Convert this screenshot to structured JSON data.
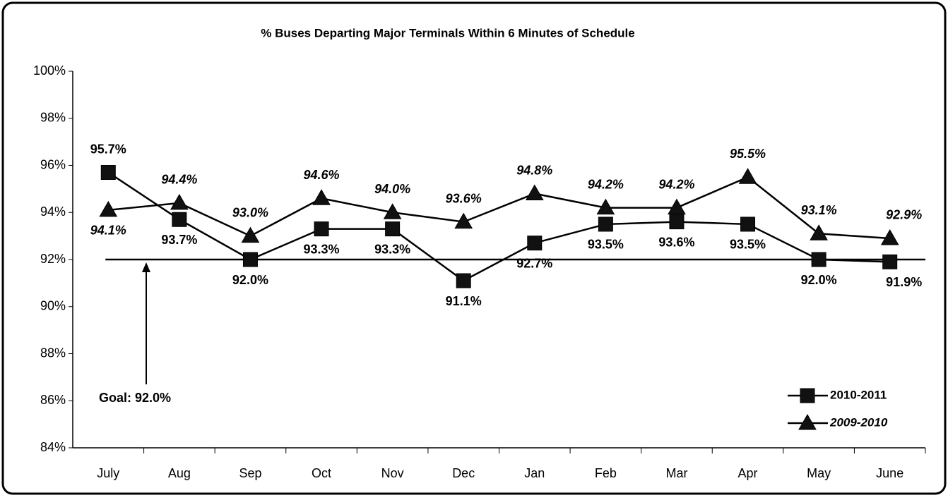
{
  "chart_data": {
    "type": "line",
    "title": "% Buses Departing Major Terminals Within 6 Minutes of Schedule",
    "categories": [
      "July",
      "Aug",
      "Sep",
      "Oct",
      "Nov",
      "Dec",
      "Jan",
      "Feb",
      "Mar",
      "Apr",
      "May",
      "June"
    ],
    "series": [
      {
        "name": "2010-2011",
        "color": "#000000",
        "marker": "square",
        "values": [
          95.7,
          93.7,
          92.0,
          93.3,
          93.3,
          91.1,
          92.7,
          93.5,
          93.6,
          93.5,
          92.0,
          91.9
        ],
        "value_labels": [
          "95.7%",
          "93.7%",
          "92.0%",
          "93.3%",
          "93.3%",
          "91.1%",
          "92.7%",
          "93.5%",
          "93.6%",
          "93.5%",
          "92.0%",
          "91.9%"
        ]
      },
      {
        "name": "2009-2010",
        "color": "#000000",
        "marker": "triangle",
        "values": [
          94.1,
          94.4,
          93.0,
          94.6,
          94.0,
          93.6,
          94.8,
          94.2,
          94.2,
          95.5,
          93.1,
          92.9
        ],
        "value_labels": [
          "94.1%",
          "94.4%",
          "93.0%",
          "94.6%",
          "94.0%",
          "93.6%",
          "94.8%",
          "94.2%",
          "94.2%",
          "95.5%",
          "93.1%",
          "92.9%"
        ]
      }
    ],
    "goal": {
      "value": 92,
      "label": "Goal: 92.0%"
    },
    "ylim": [
      84,
      100
    ],
    "yticks": [
      {
        "value": 84,
        "label": "84%"
      },
      {
        "value": 86,
        "label": "86%"
      },
      {
        "value": 88,
        "label": "88%"
      },
      {
        "value": 90,
        "label": "90%"
      },
      {
        "value": 92,
        "label": "92%"
      },
      {
        "value": 94,
        "label": "94%"
      },
      {
        "value": 96,
        "label": "96%"
      },
      {
        "value": 98,
        "label": "98%"
      },
      {
        "value": 100,
        "label": "100%"
      }
    ],
    "grid": false,
    "legend": "lower right"
  }
}
